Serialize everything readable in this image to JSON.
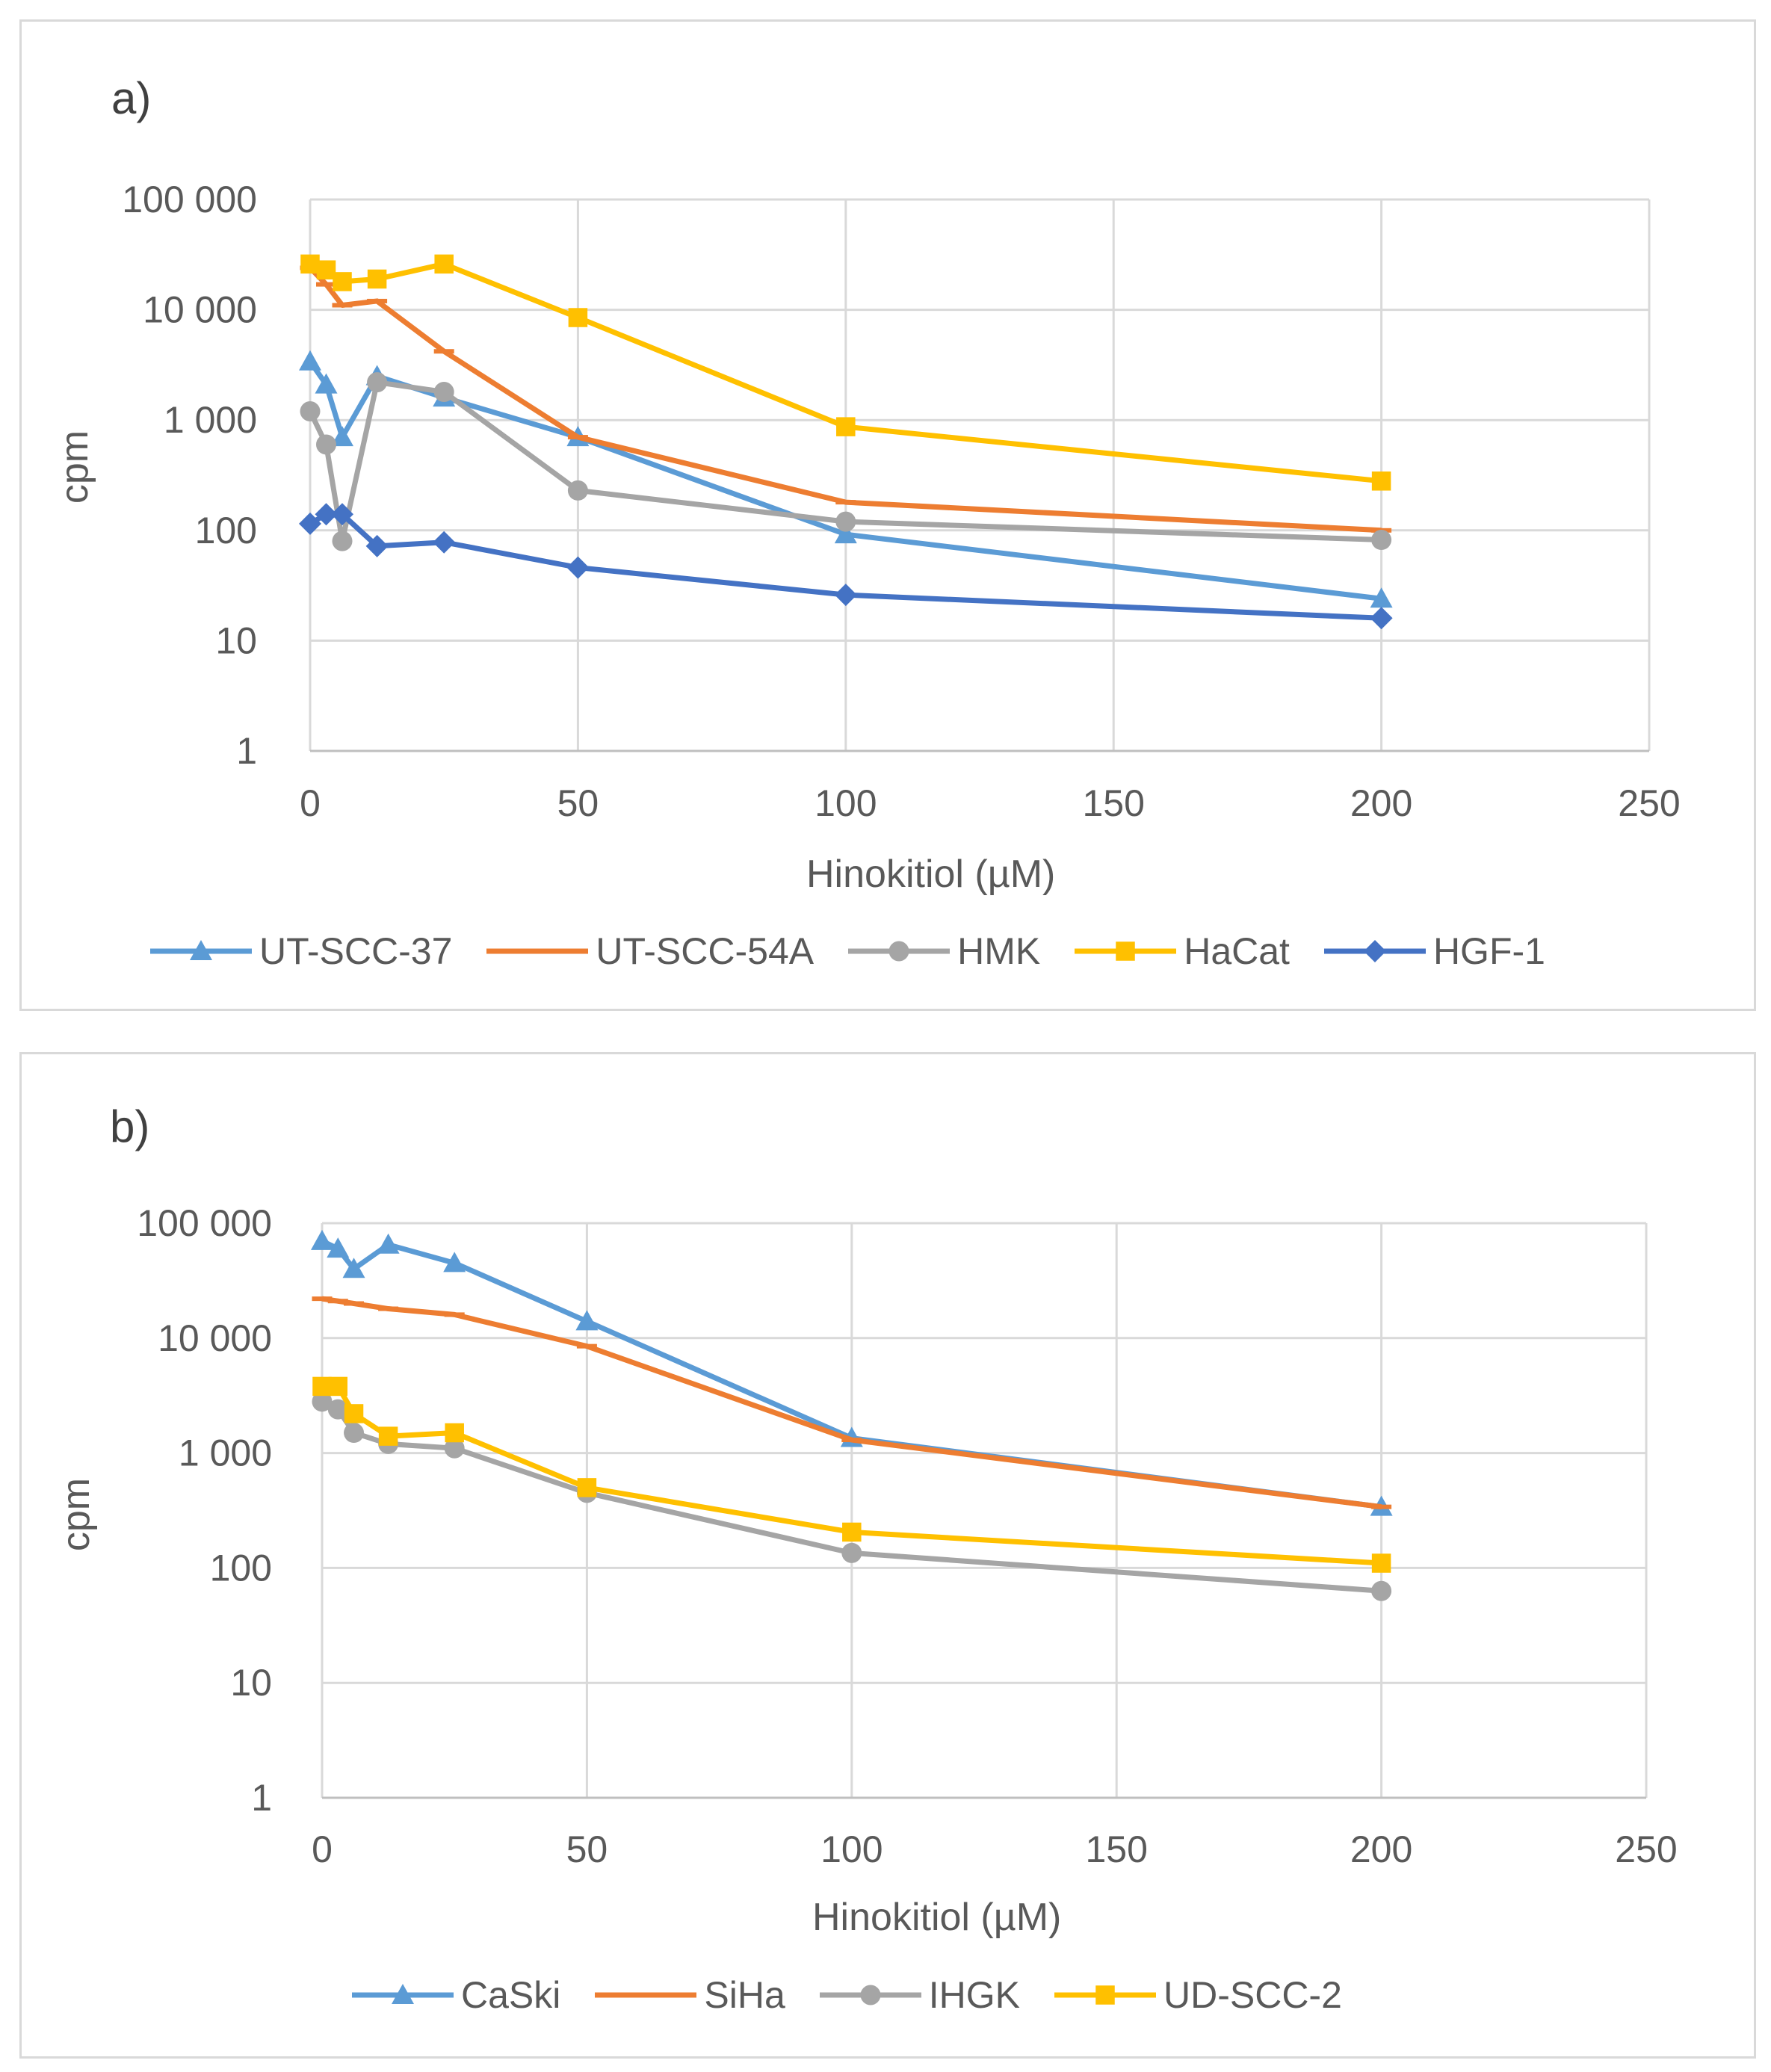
{
  "panels": [
    {
      "label": "a)",
      "xlabel": "Hinokitiol (µM)",
      "ylabel": "cpm"
    },
    {
      "label": "b)",
      "xlabel": "Hinokitiol (µM)",
      "ylabel": "cpm"
    }
  ],
  "chart_data": [
    {
      "type": "line",
      "title": "a)",
      "xlabel": "Hinokitiol (µM)",
      "ylabel": "cpm",
      "xlim": [
        0,
        250
      ],
      "xticks": [
        0,
        50,
        100,
        150,
        200,
        250
      ],
      "ylim": [
        1,
        100000
      ],
      "yscale": "log",
      "yticks": [
        1,
        10,
        100,
        1000,
        10000,
        100000
      ],
      "ytick_labels": [
        "1",
        "10",
        "100",
        "1 000",
        "10 000",
        "100 000"
      ],
      "grid": true,
      "legend_position": "bottom",
      "x": [
        0,
        3,
        6,
        12.5,
        25,
        50,
        100,
        200
      ],
      "series": [
        {
          "name": "UT-SCC-37",
          "color": "#5b9bd5",
          "marker": "triangle",
          "values": [
            3400,
            2100,
            700,
            2500,
            1600,
            700,
            92,
            24
          ]
        },
        {
          "name": "UT-SCC-54A",
          "color": "#ed7d31",
          "marker": "dash",
          "values": [
            24000,
            17000,
            11000,
            12000,
            4200,
            700,
            180,
            100
          ]
        },
        {
          "name": "HMK",
          "color": "#a5a5a5",
          "marker": "circle",
          "values": [
            1200,
            600,
            80,
            2200,
            1800,
            230,
            120,
            82
          ]
        },
        {
          "name": "HaCat",
          "color": "#ffc000",
          "marker": "square",
          "values": [
            26000,
            23000,
            18000,
            19000,
            26000,
            8500,
            870,
            280
          ]
        },
        {
          "name": "HGF-1",
          "color": "#4472c4",
          "marker": "diamond",
          "values": [
            115,
            140,
            140,
            72,
            78,
            46,
            26,
            16
          ]
        }
      ]
    },
    {
      "type": "line",
      "title": "b)",
      "xlabel": "Hinokitiol (µM)",
      "ylabel": "cpm",
      "xlim": [
        0,
        250
      ],
      "xticks": [
        0,
        50,
        100,
        150,
        200,
        250
      ],
      "ylim": [
        1,
        100000
      ],
      "yscale": "log",
      "yticks": [
        1,
        10,
        100,
        1000,
        10000,
        100000
      ],
      "ytick_labels": [
        "1",
        "10",
        "100",
        "1 000",
        "10 000",
        "100 000"
      ],
      "grid": true,
      "legend_position": "bottom",
      "x": [
        0,
        3,
        6,
        12.5,
        25,
        50,
        100,
        200
      ],
      "series": [
        {
          "name": "CaSki",
          "color": "#5b9bd5",
          "marker": "triangle",
          "values": [
            70000,
            60000,
            40000,
            65000,
            45000,
            14000,
            1350,
            340
          ]
        },
        {
          "name": "SiHa",
          "color": "#ed7d31",
          "marker": "dash",
          "values": [
            22000,
            21000,
            20000,
            18000,
            16000,
            8500,
            1300,
            340
          ]
        },
        {
          "name": "IHGK",
          "color": "#a5a5a5",
          "marker": "circle",
          "values": [
            2800,
            2400,
            1500,
            1200,
            1100,
            450,
            135,
            63
          ]
        },
        {
          "name": "UD-SCC-2",
          "color": "#ffc000",
          "marker": "square",
          "values": [
            3800,
            3800,
            2200,
            1400,
            1500,
            500,
            205,
            110
          ]
        }
      ]
    }
  ]
}
